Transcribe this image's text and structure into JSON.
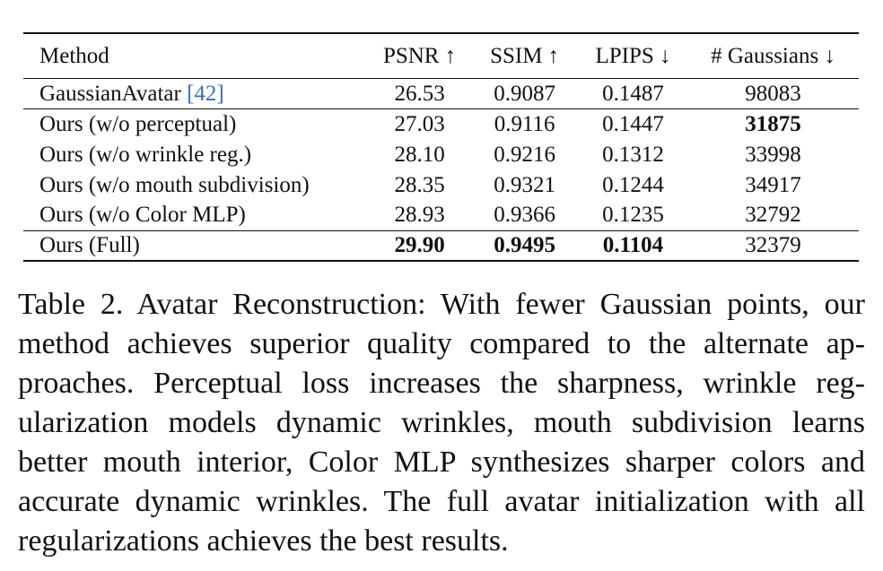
{
  "table": {
    "headers": {
      "method": "Method",
      "psnr": "PSNR ↑",
      "ssim": "SSIM ↑",
      "lpips": "LPIPS ↓",
      "gaussians": "# Gaussians ↓"
    },
    "rows": [
      {
        "method": "GaussianAvatar ",
        "cite": "[42]",
        "psnr": "26.53",
        "ssim": "0.9087",
        "lpips": "0.1487",
        "gaussians": "98083"
      },
      {
        "method": "Ours (w/o perceptual)",
        "psnr": "27.03",
        "ssim": "0.9116",
        "lpips": "0.1447",
        "gaussians": "31875"
      },
      {
        "method": "Ours (w/o wrinkle reg.)",
        "psnr": "28.10",
        "ssim": "0.9216",
        "lpips": "0.1312",
        "gaussians": "33998"
      },
      {
        "method": "Ours (w/o mouth subdivision)",
        "psnr": "28.35",
        "ssim": "0.9321",
        "lpips": "0.1244",
        "gaussians": "34917"
      },
      {
        "method": "Ours (w/o Color MLP)",
        "psnr": "28.93",
        "ssim": "0.9366",
        "lpips": "0.1235",
        "gaussians": "32792"
      },
      {
        "method": "Ours (Full)",
        "psnr": "29.90",
        "ssim": "0.9495",
        "lpips": "0.1104",
        "gaussians": "32379"
      }
    ]
  },
  "caption": {
    "lines": [
      "Table 2. Avatar Reconstruction: With fewer Gaussian points, our",
      "method achieves superior quality compared to the alternate ap-",
      "proaches. Perceptual loss increases the sharpness, wrinkle reg-",
      "ularization models dynamic wrinkles, mouth subdivision learns",
      "better mouth interior, Color MLP synthesizes sharper colors and",
      "accurate dynamic wrinkles. The full avatar initialization with all",
      "regularizations achieves the best results."
    ]
  }
}
